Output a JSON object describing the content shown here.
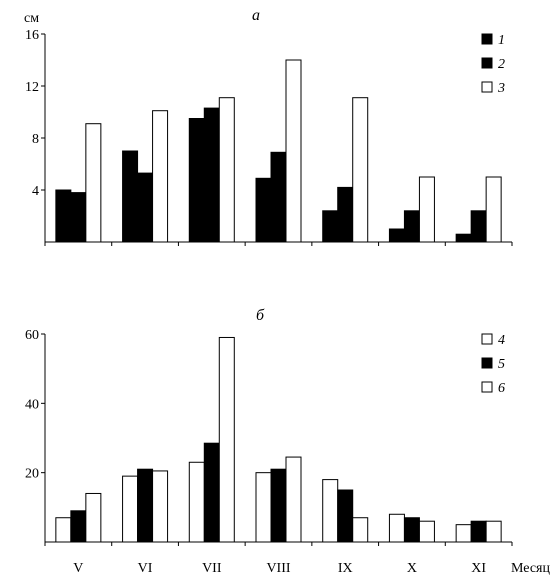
{
  "chart_data": [
    {
      "type": "bar",
      "panel_label": "а",
      "ylabel": "см",
      "ylim": [
        0,
        16
      ],
      "yticks": [
        4,
        8,
        12,
        16
      ],
      "categories": [
        "V",
        "VI",
        "VII",
        "VIII",
        "IX",
        "X",
        "XI"
      ],
      "series": [
        {
          "name": "1",
          "fill": "#000000",
          "values": [
            4.0,
            7.0,
            9.5,
            4.9,
            2.4,
            1.0,
            0.6
          ]
        },
        {
          "name": "2",
          "fill": "#000000",
          "values": [
            3.8,
            5.3,
            10.3,
            6.9,
            4.2,
            2.4,
            2.4
          ]
        },
        {
          "name": "3",
          "fill": "#ffffff",
          "values": [
            9.1,
            10.1,
            11.1,
            14.0,
            11.1,
            5.0,
            5.0
          ]
        }
      ],
      "legend_position": "top-right"
    },
    {
      "type": "bar",
      "panel_label": "б",
      "ylabel": "",
      "ylim": [
        0,
        60
      ],
      "yticks": [
        20,
        40,
        60
      ],
      "categories": [
        "V",
        "VI",
        "VII",
        "VIII",
        "IX",
        "X",
        "XI"
      ],
      "xlabel": "Месяц",
      "series": [
        {
          "name": "4",
          "fill": "#ffffff",
          "values": [
            7,
            19,
            23,
            20,
            18,
            8,
            5
          ]
        },
        {
          "name": "5",
          "fill": "#000000",
          "values": [
            9,
            21,
            28.5,
            21,
            15,
            7,
            6
          ]
        },
        {
          "name": "6",
          "fill": "#ffffff",
          "values": [
            14,
            20.5,
            59,
            24.5,
            7,
            6,
            6
          ]
        }
      ],
      "legend_position": "top-right"
    }
  ]
}
